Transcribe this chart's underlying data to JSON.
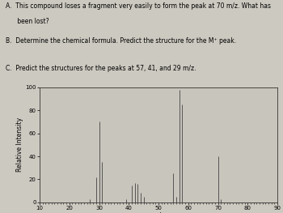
{
  "peaks": [
    {
      "mz": 27,
      "intensity": 3
    },
    {
      "mz": 29,
      "intensity": 22
    },
    {
      "mz": 30,
      "intensity": 70
    },
    {
      "mz": 31,
      "intensity": 35
    },
    {
      "mz": 39,
      "intensity": 3
    },
    {
      "mz": 41,
      "intensity": 15
    },
    {
      "mz": 42,
      "intensity": 17
    },
    {
      "mz": 43,
      "intensity": 16
    },
    {
      "mz": 44,
      "intensity": 8
    },
    {
      "mz": 45,
      "intensity": 5
    },
    {
      "mz": 55,
      "intensity": 25
    },
    {
      "mz": 56,
      "intensity": 5
    },
    {
      "mz": 57,
      "intensity": 98
    },
    {
      "mz": 58,
      "intensity": 85
    },
    {
      "mz": 70,
      "intensity": 40
    },
    {
      "mz": 71,
      "intensity": 3
    }
  ],
  "xlim": [
    10,
    90
  ],
  "ylim": [
    0,
    100
  ],
  "xlabel": "m/z",
  "ylabel": "Relative Intensity",
  "bar_color": "#555555",
  "background_color": "#ccc9c0",
  "plot_bg_color": "#c8c5bc",
  "xticks": [
    10,
    20,
    30,
    40,
    50,
    60,
    70,
    80,
    90
  ],
  "yticks": [
    0,
    20,
    40,
    60,
    80,
    100
  ],
  "line_A": "A.  This compound loses a fragment very easily to form the peak at 70 m/z. What has",
  "line_A2": "      been lost?",
  "line_B": "B.  Determine the chemical formula. Predict the structure for the M⁺ peak.",
  "line_C": "C.  Predict the structures for the peaks at 57, 41, and 29 m/z."
}
